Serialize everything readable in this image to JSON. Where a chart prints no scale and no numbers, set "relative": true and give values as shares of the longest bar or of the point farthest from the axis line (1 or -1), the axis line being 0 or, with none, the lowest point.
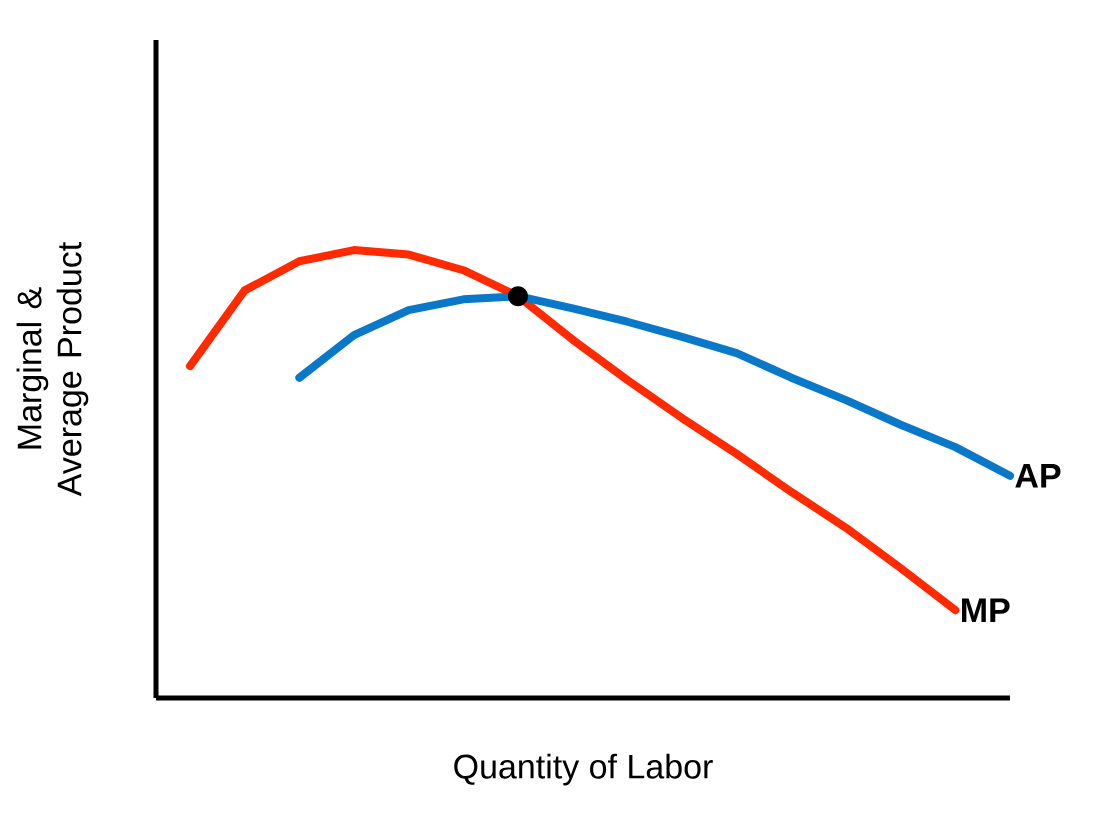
{
  "chart_data": {
    "type": "line",
    "relative": true,
    "xlabel": "Quantity of Labor",
    "ylabel": "Marginal & Average Product",
    "line_style": "solid",
    "categories": [
      null,
      null,
      null,
      null,
      null,
      null,
      null,
      null,
      null,
      null,
      null,
      null,
      null,
      null,
      null,
      null
    ],
    "series": [
      {
        "name": "MP",
        "color": "#ff2a00",
        "values": [
          0.741,
          0.91,
          0.975,
          1.0,
          0.99,
          0.955,
          0.897,
          0.8,
          0.71,
          0.625,
          0.545,
          0.46,
          0.38,
          0.29,
          0.196,
          null
        ]
      },
      {
        "name": "AP",
        "color": "#0a78c8",
        "values": [
          null,
          null,
          0.715,
          0.81,
          0.866,
          0.89,
          0.897,
          0.87,
          0.84,
          0.806,
          0.77,
          0.715,
          0.665,
          0.61,
          0.56,
          0.496
        ]
      }
    ]
  }
}
